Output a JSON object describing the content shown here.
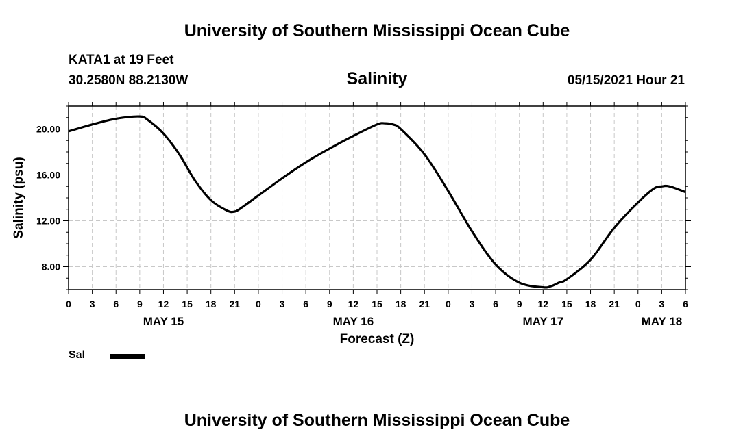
{
  "header": {
    "title": "University of Southern Mississippi Ocean Cube",
    "station": "KATA1 at 19 Feet",
    "coords": "30.2580N  88.2130W",
    "chart_title": "Salinity",
    "datetime": "05/15/2021 Hour 21"
  },
  "footer": {
    "title": "University of Southern Mississippi Ocean Cube"
  },
  "legend": {
    "label": "Sal"
  },
  "chart_data": {
    "type": "line",
    "title": "Salinity",
    "xlabel": "Forecast (Z)",
    "ylabel": "Salinity (psu)",
    "x_unit": "hours from 00Z May 15",
    "xlim": [
      0,
      78
    ],
    "ylim": [
      6,
      22
    ],
    "yticks": [
      8,
      12,
      16,
      20
    ],
    "ytick_labels": [
      "8.00",
      "12.00",
      "16.00",
      "20.00"
    ],
    "xticks": [
      0,
      3,
      6,
      9,
      12,
      15,
      18,
      21,
      24,
      27,
      30,
      33,
      36,
      39,
      42,
      45,
      48,
      51,
      54,
      57,
      60,
      63,
      66,
      69,
      72,
      75,
      78
    ],
    "xtick_labels": [
      "0",
      "3",
      "6",
      "9",
      "12",
      "15",
      "18",
      "21",
      "0",
      "3",
      "6",
      "9",
      "12",
      "15",
      "18",
      "21",
      "0",
      "3",
      "6",
      "9",
      "12",
      "15",
      "18",
      "21",
      "0",
      "3",
      "6"
    ],
    "day_labels": [
      {
        "x": 12,
        "label": "MAY 15"
      },
      {
        "x": 36,
        "label": "MAY 16"
      },
      {
        "x": 60,
        "label": "MAY 17"
      },
      {
        "x": 75,
        "label": "MAY 18"
      }
    ],
    "grid": true,
    "line_color": "#000000",
    "series": [
      {
        "name": "Sal",
        "x": [
          0,
          3,
          6,
          9,
          10,
          12,
          14,
          16,
          18,
          20,
          21,
          22,
          24,
          27,
          30,
          33,
          36,
          39,
          40,
          41,
          42,
          45,
          48,
          51,
          54,
          57,
          60,
          61,
          62,
          63,
          66,
          69,
          72,
          74,
          75,
          76,
          78
        ],
        "y": [
          19.8,
          20.4,
          20.9,
          21.1,
          20.8,
          19.6,
          17.8,
          15.5,
          13.8,
          12.9,
          12.8,
          13.2,
          14.2,
          15.7,
          17.1,
          18.3,
          19.4,
          20.4,
          20.5,
          20.4,
          20.0,
          17.8,
          14.6,
          11.1,
          8.2,
          6.6,
          6.2,
          6.3,
          6.6,
          6.9,
          8.6,
          11.4,
          13.6,
          14.8,
          15.0,
          15.0,
          14.5
        ]
      }
    ]
  }
}
